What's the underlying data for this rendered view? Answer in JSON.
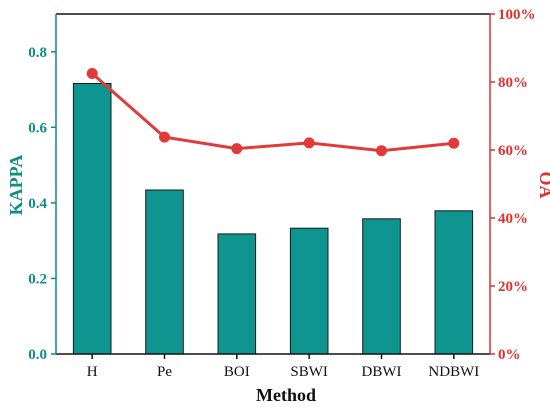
{
  "chart_data": {
    "type": "bar+line",
    "categories": [
      "H",
      "Pe",
      "BOI",
      "SBWI",
      "DBWI",
      "NDBWI"
    ],
    "series": [
      {
        "name": "",
        "type": "bar",
        "axis": "left",
        "values": [
          0.716,
          0.434,
          0.318,
          0.333,
          0.358,
          0.379
        ]
      },
      {
        "name": "",
        "type": "line",
        "axis": "right",
        "values": [
          82.5,
          63.8,
          60.4,
          62.1,
          59.8,
          62.0
        ]
      }
    ],
    "xlabel": "Method",
    "ylabel_left": "KAPPA",
    "ylabel_right": "OA",
    "ylim_left": [
      0,
      0.9
    ],
    "yticks_left": [
      "0.0",
      "0.2",
      "0.4",
      "0.6",
      "0.8"
    ],
    "ylim_right": [
      0,
      100
    ],
    "yticks_right": [
      "0%",
      "20%",
      "40%",
      "60%",
      "80%",
      "100%"
    ],
    "grid": false,
    "colors": {
      "bar": "#0f958f",
      "line": "#e03a3a",
      "left_axis": "#0f8c86",
      "right_axis": "#e03030"
    }
  }
}
